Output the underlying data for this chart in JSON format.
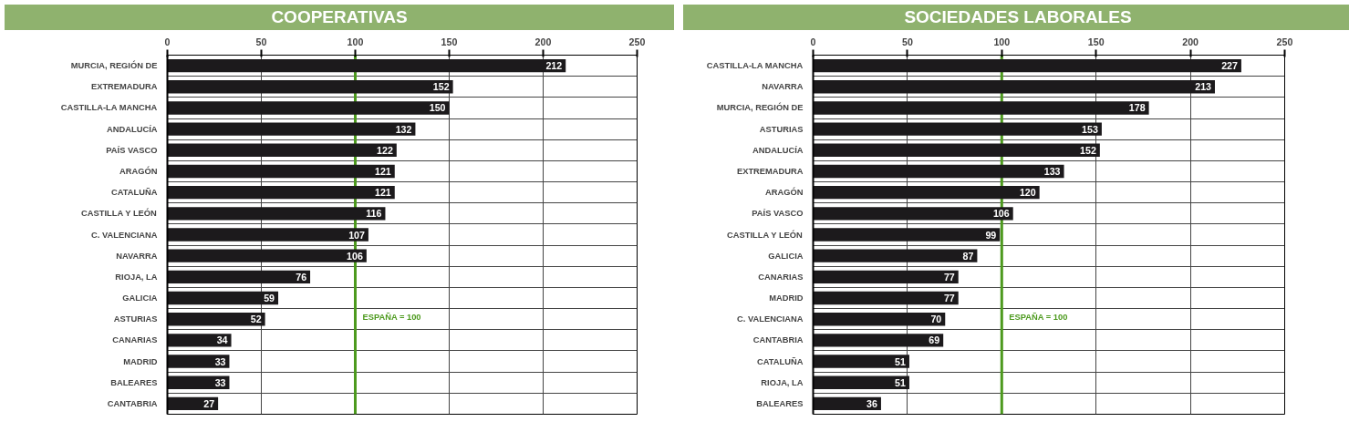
{
  "chart_data": [
    {
      "type": "bar",
      "orientation": "horizontal",
      "title": "COOPERATIVAS",
      "categories": [
        "MURCIA, REGIÓN DE",
        "EXTREMADURA",
        "CASTILLA-LA MANCHA",
        "ANDALUCÍA",
        "PAÍS VASCO",
        "ARAGÓN",
        "CATALUÑA",
        "CASTILLA Y LEÓN",
        "C. VALENCIANA",
        "NAVARRA",
        "RIOJA, LA",
        "GALICIA",
        "ASTURIAS",
        "CANARIAS",
        "MADRID",
        "BALEARES",
        "CANTABRIA"
      ],
      "values": [
        212,
        152,
        150,
        132,
        122,
        121,
        121,
        116,
        107,
        106,
        76,
        59,
        52,
        34,
        33,
        33,
        27
      ],
      "color": "#1c1a1c",
      "xlim": [
        0,
        250
      ],
      "xticks": [
        0,
        50,
        100,
        150,
        200,
        250
      ],
      "grid": true,
      "data_labels": true,
      "ref_lines": [
        {
          "axis": "x",
          "value": 100,
          "label": "ESPAÑA = 100",
          "color": "#4d9a1e"
        }
      ]
    },
    {
      "type": "bar",
      "orientation": "horizontal",
      "title": "SOCIEDADES LABORALES",
      "categories": [
        "CASTILLA-LA MANCHA",
        "NAVARRA",
        "MURCIA, REGIÓN DE",
        "ASTURIAS",
        "ANDALUCÍA",
        "EXTREMADURA",
        "ARAGÓN",
        "PAÍS VASCO",
        "CASTILLA Y LEÓN",
        "GALICIA",
        "CANARIAS",
        "MADRID",
        "C. VALENCIANA",
        "CANTABRIA",
        "CATALUÑA",
        "RIOJA, LA",
        "BALEARES"
      ],
      "values": [
        227,
        213,
        178,
        153,
        152,
        133,
        120,
        106,
        99,
        87,
        77,
        77,
        70,
        69,
        51,
        51,
        36
      ],
      "color": "#1c1a1c",
      "xlim": [
        0,
        250
      ],
      "xticks": [
        0,
        50,
        100,
        150,
        200,
        250
      ],
      "grid": true,
      "data_labels": true,
      "ref_lines": [
        {
          "axis": "x",
          "value": 100,
          "label": "ESPAÑA = 100",
          "color": "#4d9a1e"
        }
      ]
    }
  ]
}
